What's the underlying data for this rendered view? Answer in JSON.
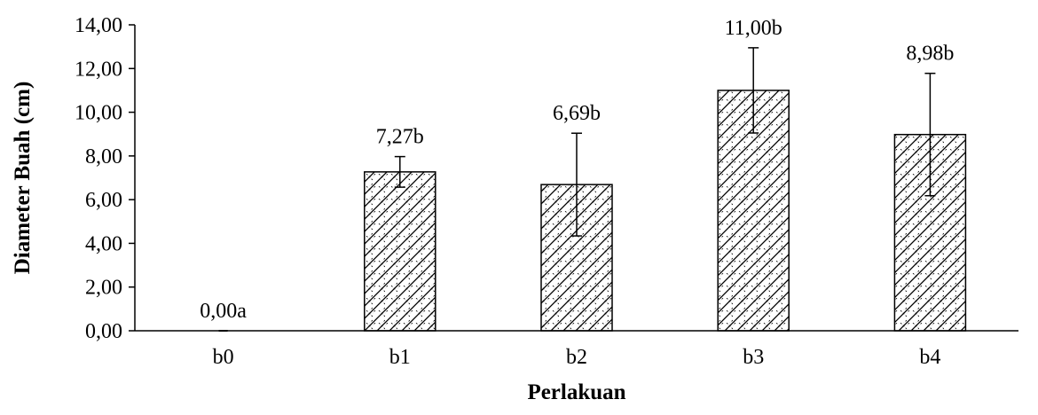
{
  "chart_data": {
    "type": "bar",
    "xlabel": "Perlakuan",
    "ylabel": "Diameter Buah (cm)",
    "categories": [
      "b0",
      "b1",
      "b2",
      "b3",
      "b4"
    ],
    "values": [
      0.0,
      7.27,
      6.69,
      11.0,
      8.98
    ],
    "error": [
      0.0,
      0.7,
      2.35,
      1.95,
      2.8
    ],
    "data_labels": [
      "0,00a",
      "7,27b",
      "6,69b",
      "11,00b",
      "8,98b"
    ],
    "ylim": [
      0,
      14
    ],
    "yticks": [
      0,
      2,
      4,
      6,
      8,
      10,
      12,
      14
    ],
    "ytick_labels": [
      "0,00",
      "2,00",
      "4,00",
      "6,00",
      "8,00",
      "10,00",
      "12,00",
      "14,00"
    ],
    "grid": false,
    "legend": "none",
    "bar_pattern": "diagonal-hatch",
    "colors": {
      "bar_fill": "#ffffff",
      "bar_stroke": "#000000",
      "axis": "#000000"
    }
  }
}
